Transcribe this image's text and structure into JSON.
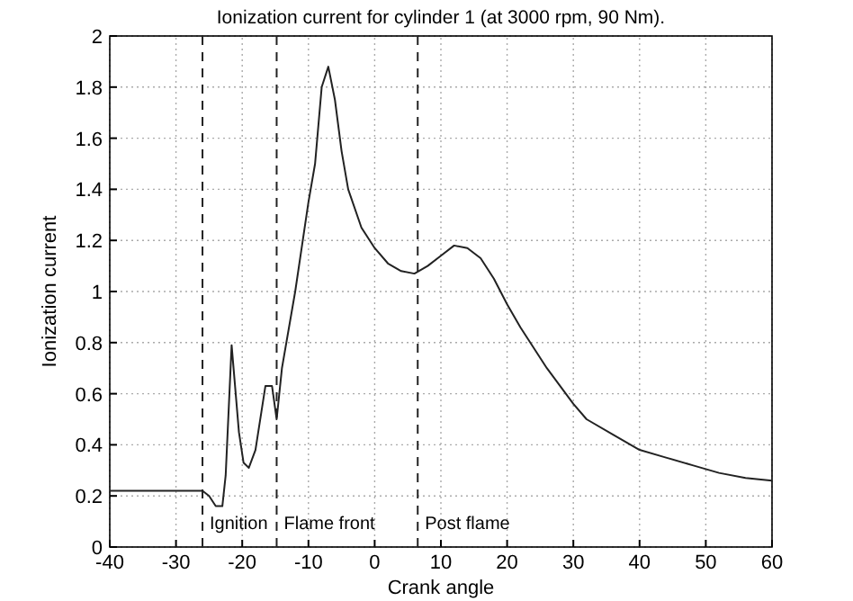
{
  "chart_data": {
    "type": "line",
    "title": "Ionization current for cylinder 1 (at 3000 rpm, 90 Nm).",
    "xlabel": "Crank angle",
    "ylabel": "Ionization current",
    "series": [
      {
        "color": "#222222",
        "x": [
          -40,
          -30,
          -26,
          -25,
          -24,
          -23,
          -22.5,
          -21.6,
          -20.5,
          -19.8,
          -19,
          -18,
          -16.5,
          -15.5,
          -14.8,
          -14,
          -12,
          -10,
          -9,
          -8,
          -7,
          -6,
          -5,
          -4,
          -2,
          0,
          2,
          4,
          6,
          8,
          10,
          12,
          14,
          16,
          18,
          20,
          22,
          26,
          30,
          32,
          36,
          40,
          44,
          48,
          52,
          56,
          60
        ],
        "values": [
          0.22,
          0.22,
          0.22,
          0.2,
          0.16,
          0.16,
          0.28,
          0.79,
          0.45,
          0.33,
          0.31,
          0.38,
          0.63,
          0.63,
          0.5,
          0.7,
          1.0,
          1.35,
          1.5,
          1.8,
          1.88,
          1.75,
          1.55,
          1.4,
          1.25,
          1.17,
          1.11,
          1.08,
          1.07,
          1.1,
          1.14,
          1.18,
          1.17,
          1.13,
          1.05,
          0.95,
          0.86,
          0.7,
          0.56,
          0.5,
          0.44,
          0.38,
          0.35,
          0.32,
          0.29,
          0.27,
          0.26
        ]
      }
    ],
    "xlim": [
      -40,
      60
    ],
    "xticks": [
      -40,
      -30,
      -20,
      -10,
      0,
      10,
      20,
      30,
      40,
      50,
      60
    ],
    "ylim": [
      0,
      2
    ],
    "yticks": [
      0,
      0.2,
      0.4,
      0.6,
      0.8,
      1,
      1.2,
      1.4,
      1.6,
      1.8,
      2
    ],
    "grid": true,
    "line_style": "solid",
    "marker": "none",
    "ref_lines": [
      {
        "axis": "x",
        "value": -26,
        "line_style": "dashed",
        "color": "#222222"
      },
      {
        "axis": "x",
        "value": -14.8,
        "line_style": "dashed",
        "color": "#222222"
      },
      {
        "axis": "x",
        "value": 6.5,
        "line_style": "dashed",
        "color": "#222222"
      }
    ],
    "annotations": [
      "Ignition",
      "Flame front",
      "Post flame"
    ]
  }
}
